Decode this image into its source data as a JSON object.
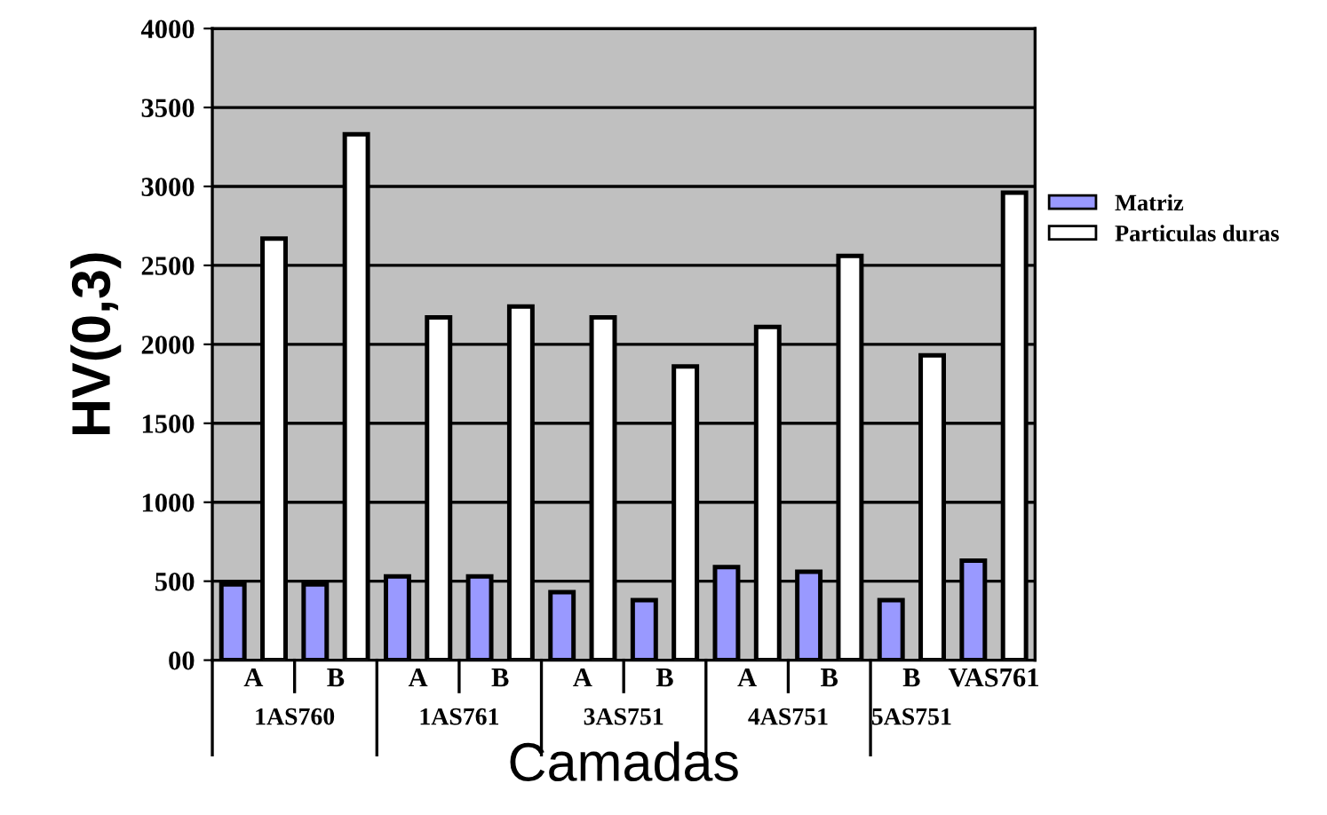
{
  "chart_data": {
    "type": "bar",
    "xlabel": "Camadas",
    "ylabel": "HV(0,3)",
    "categories": [
      "A",
      "B",
      "A",
      "B",
      "A",
      "B",
      "A",
      "B",
      "B",
      "VAS761"
    ],
    "series": [
      {
        "name": "Matriz",
        "color": "#9999ff",
        "values": [
          480,
          480,
          530,
          530,
          430,
          380,
          590,
          560,
          380,
          630
        ]
      },
      {
        "name": "Particulas duras",
        "color": "#ffffff",
        "values": [
          2670,
          3330,
          2170,
          2240,
          2170,
          1860,
          2110,
          2560,
          1930,
          2960
        ]
      }
    ],
    "annotations": [
      "1AS760",
      "1AS761",
      "3AS751",
      "4AS751",
      "5AS751"
    ],
    "ylim": [
      0,
      4000
    ],
    "yticks": [
      {
        "value": 0,
        "label": "00"
      },
      500,
      1000,
      1500,
      2000,
      2500,
      3000,
      3500,
      4000
    ],
    "grid": "y",
    "legend": "right"
  }
}
